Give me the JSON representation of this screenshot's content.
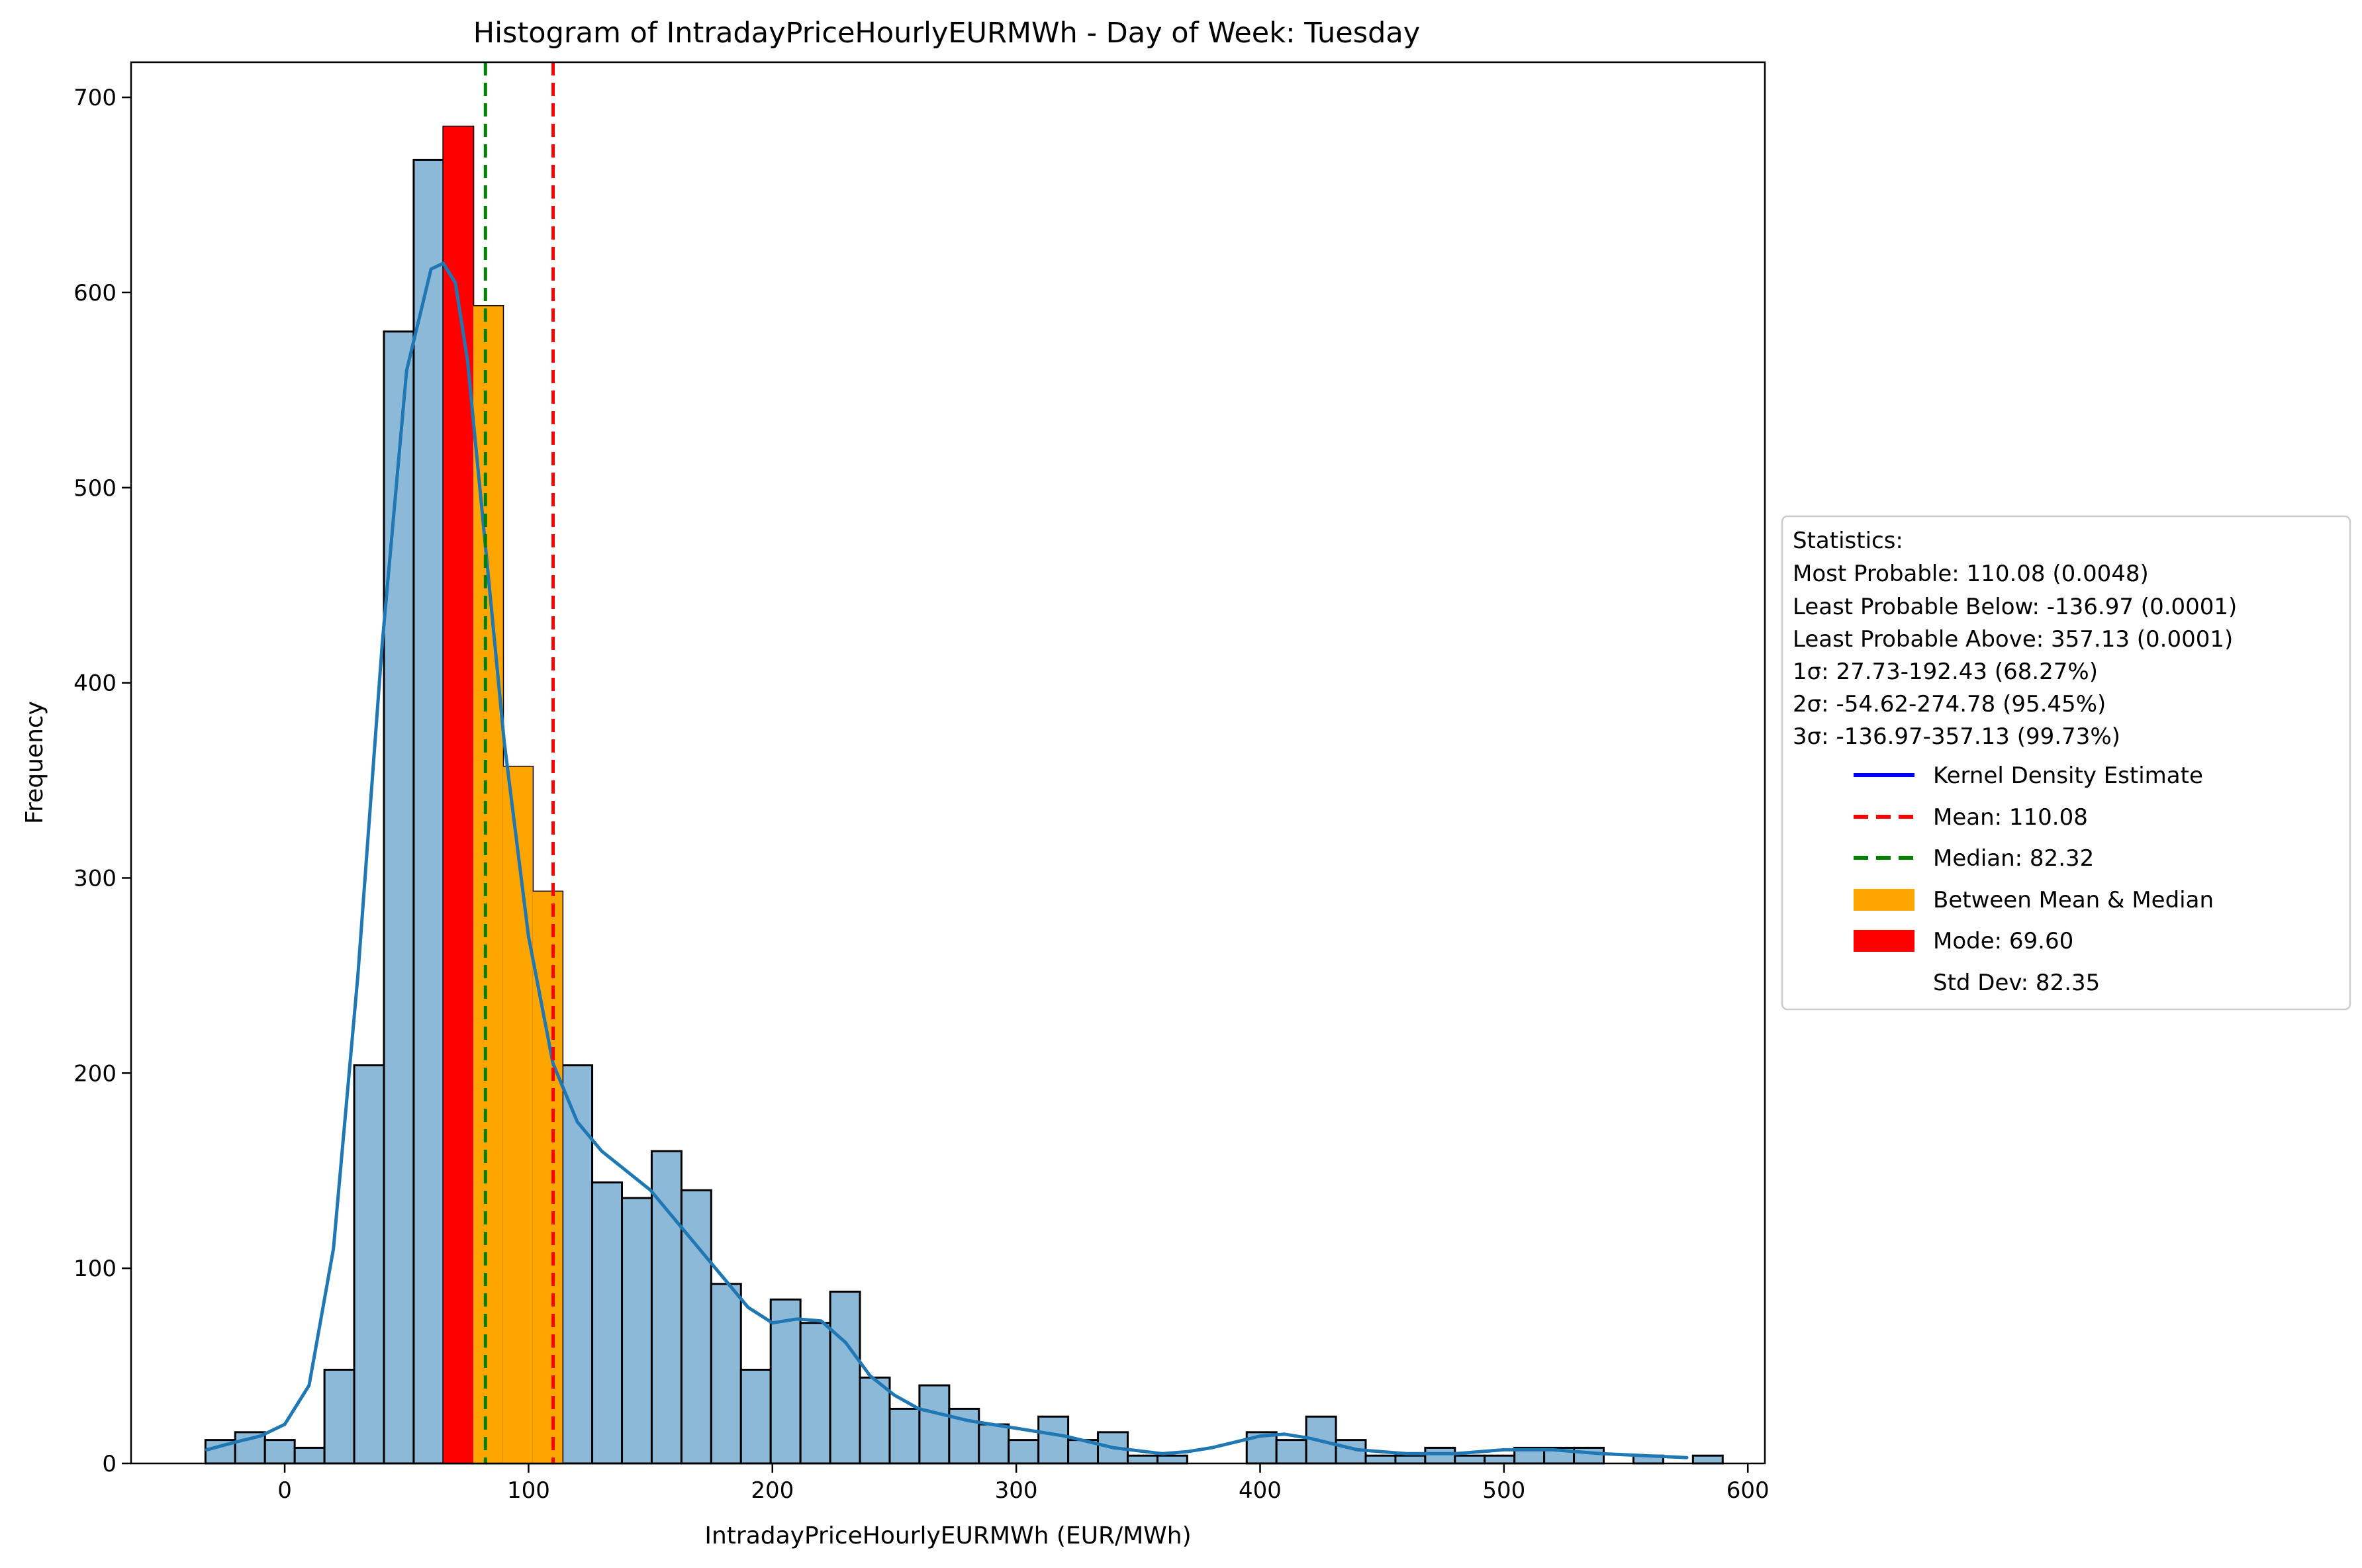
{
  "chart_data": {
    "type": "bar",
    "title": "Histogram of IntradayPriceHourlyEURMWh - Day of Week: Tuesday",
    "xlabel": "IntradayPriceHourlyEURMWh (EUR/MWh)",
    "ylabel": "Frequency",
    "xlim": [
      -63,
      607
    ],
    "ylim": [
      0,
      718
    ],
    "xticks": [
      0,
      100,
      200,
      300,
      400,
      500,
      600
    ],
    "yticks": [
      0,
      100,
      200,
      300,
      400,
      500,
      600,
      700
    ],
    "bin_start": -32.5,
    "bin_width": 12.2,
    "counts": [
      12,
      16,
      12,
      8,
      48,
      204,
      580,
      668,
      685,
      593,
      357,
      293,
      204,
      144,
      136,
      160,
      140,
      92,
      48,
      84,
      72,
      88,
      44,
      28,
      40,
      28,
      20,
      12,
      24,
      12,
      16,
      4,
      4,
      0,
      0,
      16,
      12,
      24,
      12,
      4,
      4,
      8,
      4,
      4,
      8,
      8,
      8,
      0,
      4,
      0,
      4
    ],
    "highlight_mode_bin": 8,
    "highlight_between_bins": [
      9,
      10,
      11
    ],
    "kde": {
      "x": [
        -32,
        -20,
        -10,
        0,
        10,
        20,
        30,
        40,
        50,
        60,
        65,
        70,
        75,
        80,
        90,
        100,
        110,
        120,
        130,
        140,
        150,
        160,
        170,
        180,
        190,
        200,
        210,
        220,
        230,
        240,
        250,
        260,
        280,
        300,
        320,
        340,
        360,
        370,
        380,
        400,
        410,
        420,
        440,
        460,
        480,
        500,
        520,
        540,
        575
      ],
      "y": [
        7,
        11,
        14,
        20,
        40,
        110,
        250,
        420,
        560,
        612,
        615,
        605,
        565,
        500,
        370,
        270,
        205,
        175,
        160,
        150,
        140,
        125,
        110,
        95,
        80,
        72,
        74,
        73,
        62,
        45,
        35,
        28,
        22,
        18,
        14,
        8,
        5,
        6,
        8,
        14,
        15,
        13,
        7,
        5,
        5,
        7,
        7,
        5,
        3
      ]
    },
    "mean": 110.08,
    "median": 82.32,
    "colors": {
      "bar": "#8db9d9",
      "bar_edge": "#000000",
      "kde": "#1f77b4",
      "mean": "#ff0000",
      "median": "#008000",
      "between": "#ffa500",
      "mode": "#ff0000",
      "legend_kde": "#0000ff"
    }
  },
  "legend": {
    "stats_title": "Statistics:",
    "stats_lines": [
      "Most Probable: 110.08 (0.0048)",
      "Least Probable Below: -136.97 (0.0001)",
      "Least Probable Above: 357.13 (0.0001)",
      "1σ: 27.73-192.43 (68.27%)",
      "2σ: -54.62-274.78 (95.45%)",
      "3σ: -136.97-357.13 (99.73%)"
    ],
    "entries": [
      {
        "label": "Kernel Density Estimate",
        "type": "line",
        "color": "#0000ff"
      },
      {
        "label": "Mean: 110.08",
        "type": "dash",
        "color": "#ff0000"
      },
      {
        "label": "Median: 82.32",
        "type": "dash",
        "color": "#008000"
      },
      {
        "label": "Between Mean & Median",
        "type": "patch",
        "color": "#ffa500"
      },
      {
        "label": "Mode: 69.60",
        "type": "patch",
        "color": "#ff0000"
      },
      {
        "label": "Std Dev: 82.35",
        "type": "none",
        "color": ""
      }
    ]
  }
}
